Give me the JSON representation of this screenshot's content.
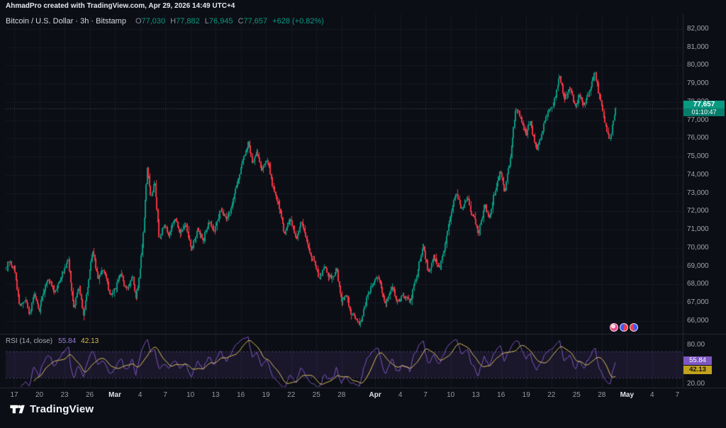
{
  "attribution": "AhmadPro created with TradingView.com, Apr 29, 2026 14:49 UTC+4",
  "symbol_legend": {
    "title": "Bitcoin / U.S. Dollar · 3h · Bitstamp",
    "ohlc": [
      {
        "label": "O",
        "value": "77,030"
      },
      {
        "label": "H",
        "value": "77,882"
      },
      {
        "label": "L",
        "value": "76,945"
      },
      {
        "label": "C",
        "value": "77,657"
      }
    ],
    "change": "+628 (+0.82%)"
  },
  "price_label": {
    "price": "77,657",
    "countdown": "01:10:47"
  },
  "rsi_legend": {
    "title": "RSI (14, close)",
    "value": "55.84",
    "ma_value": "42.13"
  },
  "price_axis": {
    "ticks": [
      82000,
      81000,
      80000,
      79000,
      78000,
      77000,
      76000,
      75000,
      74000,
      73000,
      72000,
      71000,
      70000,
      69000,
      68000,
      67000,
      66000
    ]
  },
  "rsi_axis": {
    "ticks": [
      {
        "label": "80.00",
        "value": 80
      },
      {
        "label": "20.00",
        "value": 20
      }
    ]
  },
  "time_axis": {
    "ticks": [
      {
        "label": "17",
        "day": 0
      },
      {
        "label": "20",
        "day": 3
      },
      {
        "label": "23",
        "day": 6
      },
      {
        "label": "26",
        "day": 9
      },
      {
        "label": "Mar",
        "day": 12,
        "major": true
      },
      {
        "label": "4",
        "day": 15
      },
      {
        "label": "7",
        "day": 18
      },
      {
        "label": "10",
        "day": 21
      },
      {
        "label": "13",
        "day": 24
      },
      {
        "label": "16",
        "day": 27
      },
      {
        "label": "19",
        "day": 30
      },
      {
        "label": "22",
        "day": 33
      },
      {
        "label": "25",
        "day": 36
      },
      {
        "label": "28",
        "day": 39
      },
      {
        "label": "Apr",
        "day": 43,
        "major": true
      },
      {
        "label": "4",
        "day": 46
      },
      {
        "label": "7",
        "day": 49
      },
      {
        "label": "10",
        "day": 52
      },
      {
        "label": "13",
        "day": 55
      },
      {
        "label": "16",
        "day": 58
      },
      {
        "label": "19",
        "day": 61
      },
      {
        "label": "22",
        "day": 64
      },
      {
        "label": "25",
        "day": 67
      },
      {
        "label": "28",
        "day": 70
      },
      {
        "label": "May",
        "day": 73,
        "major": true
      },
      {
        "label": "4",
        "day": 76
      },
      {
        "label": "7",
        "day": 79
      }
    ]
  },
  "logo_text": "TradingView",
  "icons": {
    "stickers": [
      "pink-ball-sticker",
      "blue-red-ball-sticker",
      "red-blue-ball-sticker"
    ]
  },
  "colors": {
    "background": "#0c0e15",
    "up": "#089981",
    "down": "#f23645",
    "rsi_line": "#7e57c2",
    "rsi_ma_line": "#e3c85c",
    "price_badge": "#089981",
    "countdown_badge": "#067d6b",
    "rsi_badge": "#7e57c2",
    "rsi_ma_badge": "#c2a21c",
    "axis_text": "#a2a5af"
  },
  "chart_data": {
    "type": "candlestick",
    "symbol": "Bitcoin / U.S. Dollar",
    "interval": "3h",
    "exchange": "Bitstamp",
    "last": {
      "open": 77030,
      "high": 77882,
      "low": 76945,
      "close": 77657,
      "change": 628,
      "change_pct": 0.82
    },
    "price_ylim": [
      65338,
      82738
    ],
    "candles_per_day": 8,
    "x_start_day": -1,
    "x_end_day": 71.6,
    "price_path": [
      [
        -1.0,
        68800
      ],
      [
        -0.5,
        69300
      ],
      [
        0,
        68900
      ],
      [
        0.7,
        66900
      ],
      [
        1.3,
        67300
      ],
      [
        1.8,
        66500
      ],
      [
        2.4,
        67400
      ],
      [
        3.0,
        66600
      ],
      [
        3.6,
        67600
      ],
      [
        4.2,
        68300
      ],
      [
        4.8,
        67600
      ],
      [
        5.4,
        68400
      ],
      [
        6.0,
        68900
      ],
      [
        6.5,
        69300
      ],
      [
        7.1,
        66700
      ],
      [
        7.7,
        67900
      ],
      [
        8.3,
        66400
      ],
      [
        9.3,
        69900
      ],
      [
        10.0,
        68300
      ],
      [
        10.6,
        68900
      ],
      [
        11.3,
        67600
      ],
      [
        12.0,
        67900
      ],
      [
        12.7,
        68500
      ],
      [
        13.4,
        67800
      ],
      [
        14.1,
        68600
      ],
      [
        14.5,
        67200
      ],
      [
        15.0,
        68700
      ],
      [
        15.5,
        71500
      ],
      [
        15.9,
        74300
      ],
      [
        16.3,
        72600
      ],
      [
        16.7,
        73700
      ],
      [
        17.3,
        70400
      ],
      [
        17.9,
        71400
      ],
      [
        18.5,
        70800
      ],
      [
        19.1,
        71600
      ],
      [
        19.7,
        70900
      ],
      [
        20.4,
        71100
      ],
      [
        21.1,
        69900
      ],
      [
        21.8,
        71000
      ],
      [
        22.5,
        70600
      ],
      [
        23.2,
        71500
      ],
      [
        23.9,
        70900
      ],
      [
        24.6,
        72200
      ],
      [
        25.3,
        71700
      ],
      [
        26.0,
        72600
      ],
      [
        26.7,
        73800
      ],
      [
        27.4,
        75100
      ],
      [
        27.9,
        75900
      ],
      [
        28.4,
        74600
      ],
      [
        28.9,
        75400
      ],
      [
        29.5,
        74100
      ],
      [
        30.1,
        74700
      ],
      [
        30.8,
        73200
      ],
      [
        31.5,
        72300
      ],
      [
        32.2,
        70800
      ],
      [
        32.9,
        71700
      ],
      [
        33.6,
        70500
      ],
      [
        34.3,
        71400
      ],
      [
        35.0,
        70000
      ],
      [
        35.7,
        69200
      ],
      [
        36.4,
        68200
      ],
      [
        37.0,
        69000
      ],
      [
        37.7,
        68300
      ],
      [
        38.4,
        68800
      ],
      [
        39.0,
        67000
      ],
      [
        39.6,
        67500
      ],
      [
        40.1,
        66400
      ],
      [
        40.7,
        66200
      ],
      [
        41.2,
        65950
      ],
      [
        41.7,
        66900
      ],
      [
        42.3,
        67500
      ],
      [
        43.0,
        68400
      ],
      [
        43.5,
        68300
      ],
      [
        44.3,
        66950
      ],
      [
        45.0,
        67600
      ],
      [
        45.8,
        66900
      ],
      [
        46.5,
        67300
      ],
      [
        47.2,
        66950
      ],
      [
        47.8,
        68100
      ],
      [
        48.7,
        70200
      ],
      [
        49.3,
        68800
      ],
      [
        50.0,
        69500
      ],
      [
        50.7,
        68900
      ],
      [
        51.4,
        70300
      ],
      [
        52.0,
        71800
      ],
      [
        52.7,
        73100
      ],
      [
        53.3,
        72200
      ],
      [
        54.0,
        72700
      ],
      [
        54.6,
        71800
      ],
      [
        55.3,
        70950
      ],
      [
        56.0,
        72300
      ],
      [
        56.6,
        71700
      ],
      [
        57.3,
        73100
      ],
      [
        57.9,
        74300
      ],
      [
        58.4,
        73300
      ],
      [
        59.0,
        74600
      ],
      [
        59.8,
        77900
      ],
      [
        60.3,
        77200
      ],
      [
        61.0,
        76200
      ],
      [
        61.5,
        77000
      ],
      [
        62.2,
        75500
      ],
      [
        62.8,
        76300
      ],
      [
        63.4,
        77400
      ],
      [
        64.2,
        78000
      ],
      [
        65.0,
        79300
      ],
      [
        65.5,
        78100
      ],
      [
        66.2,
        78700
      ],
      [
        66.8,
        77700
      ],
      [
        67.4,
        78300
      ],
      [
        68.0,
        77900
      ],
      [
        68.6,
        78700
      ],
      [
        69.2,
        79400
      ],
      [
        69.8,
        78300
      ],
      [
        70.4,
        76700
      ],
      [
        71.0,
        75950
      ],
      [
        71.35,
        76900
      ],
      [
        71.6,
        77657
      ]
    ],
    "rsi": {
      "period": 14,
      "source": "close",
      "last_value": 55.84,
      "last_ma": 42.13,
      "bands": [
        70,
        30
      ],
      "ylim": [
        16,
        94
      ]
    }
  }
}
